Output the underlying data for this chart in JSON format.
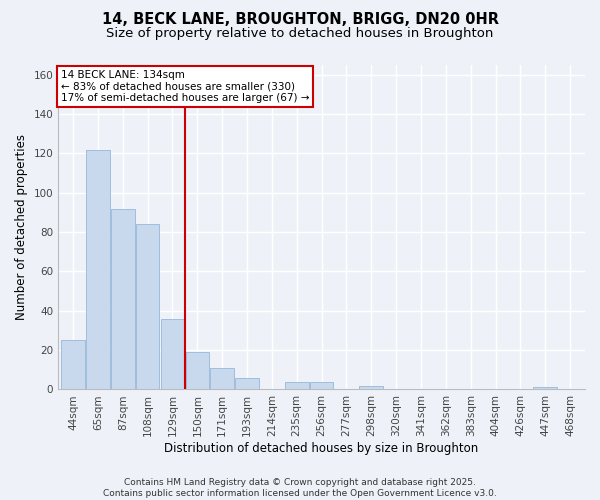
{
  "title1": "14, BECK LANE, BROUGHTON, BRIGG, DN20 0HR",
  "title2": "Size of property relative to detached houses in Broughton",
  "xlabel": "Distribution of detached houses by size in Broughton",
  "ylabel": "Number of detached properties",
  "categories": [
    "44sqm",
    "65sqm",
    "87sqm",
    "108sqm",
    "129sqm",
    "150sqm",
    "171sqm",
    "193sqm",
    "214sqm",
    "235sqm",
    "256sqm",
    "277sqm",
    "298sqm",
    "320sqm",
    "341sqm",
    "362sqm",
    "383sqm",
    "404sqm",
    "426sqm",
    "447sqm",
    "468sqm"
  ],
  "values": [
    25,
    122,
    92,
    84,
    36,
    19,
    11,
    6,
    0,
    4,
    4,
    0,
    2,
    0,
    0,
    0,
    0,
    0,
    0,
    1,
    0
  ],
  "bar_color": "#c8d8ed",
  "bar_edge_color": "#8aaed4",
  "background_color": "#eef2f8",
  "grid_color": "#ffffff",
  "red_line_x": 4.5,
  "red_line_label": "14 BECK LANE: 134sqm",
  "annotation_line1": "← 83% of detached houses are smaller (330)",
  "annotation_line2": "17% of semi-detached houses are larger (67) →",
  "annotation_box_color": "#ffffff",
  "annotation_box_edge_color": "#cc0000",
  "red_line_color": "#cc0000",
  "ylim": [
    0,
    165
  ],
  "yticks": [
    0,
    20,
    40,
    60,
    80,
    100,
    120,
    140,
    160
  ],
  "footer1": "Contains HM Land Registry data © Crown copyright and database right 2025.",
  "footer2": "Contains public sector information licensed under the Open Government Licence v3.0.",
  "title1_fontsize": 10.5,
  "title2_fontsize": 9.5,
  "xlabel_fontsize": 8.5,
  "ylabel_fontsize": 8.5,
  "tick_fontsize": 7.5,
  "footer_fontsize": 6.5,
  "annotation_fontsize": 7.5
}
